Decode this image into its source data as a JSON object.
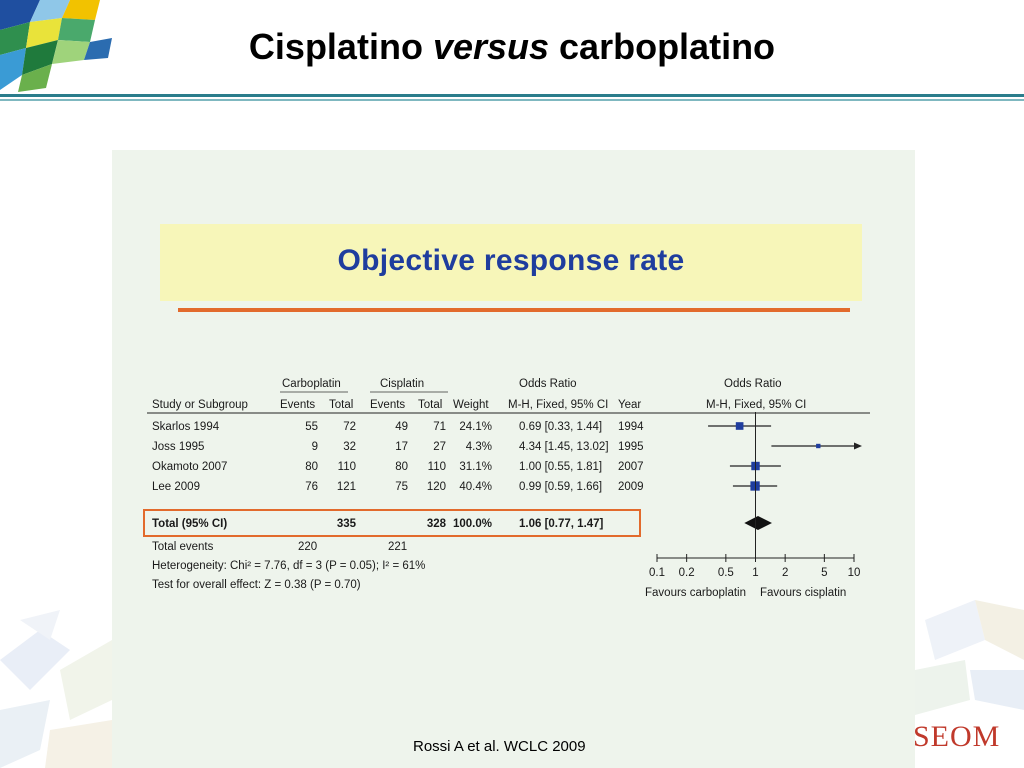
{
  "slide": {
    "title_part1": "Cisplatino ",
    "title_italic": "versus",
    "title_part2": " carboplatino",
    "citation": "Rossi A et al. WCLC 2009",
    "brand": "SEOM"
  },
  "banner": {
    "title": "Objective response rate"
  },
  "colors": {
    "accent_teal": "#2a7d8c",
    "banner_bg": "#f7f6b9",
    "banner_text": "#1f3d9e",
    "orange": "#e26a2c",
    "marker": "#1f3d9e",
    "panel_bg": "#eef4ec"
  },
  "chart_data": {
    "type": "forest",
    "group_headers": {
      "experimental": "Carboplatin",
      "control": "Cisplatin",
      "odds_ratio_text": "Odds Ratio",
      "odds_ratio_plot": "Odds Ratio"
    },
    "columns": {
      "study": "Study or Subgroup",
      "events1": "Events",
      "total1": "Total",
      "events2": "Events",
      "total2": "Total",
      "weight": "Weight",
      "ci_text": "M-H, Fixed, 95% CI",
      "year": "Year",
      "plot": "M-H, Fixed, 95% CI"
    },
    "studies": [
      {
        "name": "Skarlos 1994",
        "events1": "55",
        "total1": "72",
        "events2": "49",
        "total2": "71",
        "weight": "24.1%",
        "ci_text": "0.69 [0.33, 1.44]",
        "year": "1994",
        "or": 0.69,
        "lo": 0.33,
        "hi": 1.44
      },
      {
        "name": "Joss 1995",
        "events1": "9",
        "total1": "32",
        "events2": "17",
        "total2": "27",
        "weight": "4.3%",
        "ci_text": "4.34 [1.45, 13.02]",
        "year": "1995",
        "or": 4.34,
        "lo": 1.45,
        "hi": 13.02
      },
      {
        "name": "Okamoto 2007",
        "events1": "80",
        "total1": "110",
        "events2": "80",
        "total2": "110",
        "weight": "31.1%",
        "ci_text": "1.00 [0.55, 1.81]",
        "year": "2007",
        "or": 1.0,
        "lo": 0.55,
        "hi": 1.81
      },
      {
        "name": "Lee 2009",
        "events1": "76",
        "total1": "121",
        "events2": "75",
        "total2": "120",
        "weight": "40.4%",
        "ci_text": "0.99 [0.59, 1.66]",
        "year": "2009",
        "or": 0.99,
        "lo": 0.59,
        "hi": 1.66
      }
    ],
    "total": {
      "label": "Total (95% CI)",
      "total1": "335",
      "total2": "328",
      "weight": "100.0%",
      "ci_text": "1.06 [0.77, 1.47]",
      "or": 1.06,
      "lo": 0.77,
      "hi": 1.47
    },
    "total_events": {
      "label": "Total events",
      "events1": "220",
      "events2": "221"
    },
    "heterogeneity": "Heterogeneity: Chi² = 7.76, df = 3 (P = 0.05); I² = 61%",
    "overall_effect": "Test for overall effect: Z = 0.38 (P = 0.70)",
    "axis": {
      "scale": "log",
      "range": [
        0.1,
        10
      ],
      "ticks": [
        0.1,
        0.2,
        0.5,
        1,
        2,
        5,
        10
      ],
      "tick_labels": [
        "0.1",
        "0.2",
        "0.5",
        "1",
        "2",
        "5",
        "10"
      ],
      "favours_left": "Favours carboplatin",
      "favours_right": "Favours cisplatin"
    }
  }
}
